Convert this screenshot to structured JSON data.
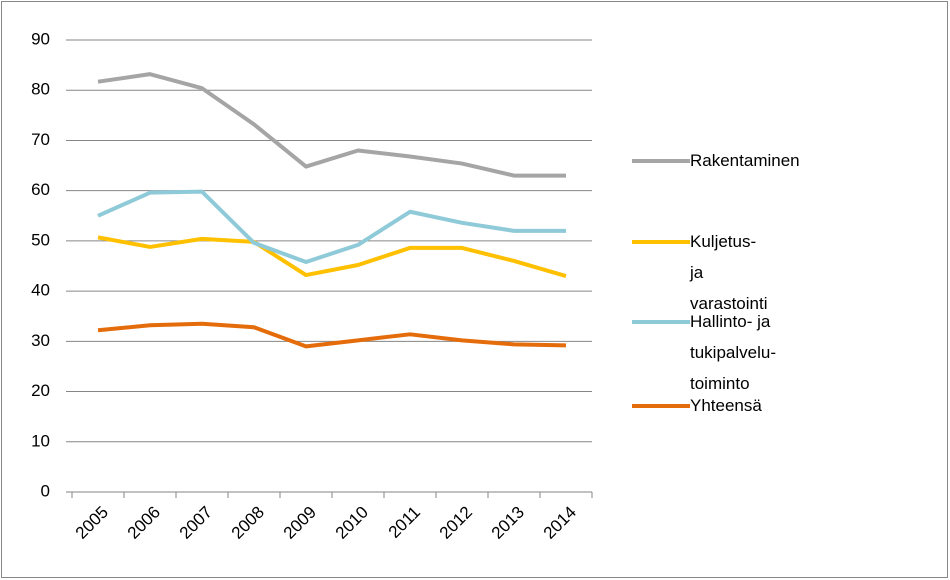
{
  "chart_data": {
    "type": "line",
    "categories": [
      "2005",
      "2006",
      "2007",
      "2008",
      "2009",
      "2010",
      "2011",
      "2012",
      "2013",
      "2014"
    ],
    "series": [
      {
        "name": "Rakentaminen",
        "color": "#a5a5a5",
        "values": [
          81.7,
          83.2,
          80.4,
          73.2,
          64.8,
          68.0,
          66.8,
          65.4,
          63.0,
          63.0
        ]
      },
      {
        "name": "Kuljetus- ja varastointi",
        "color": "#ffc000",
        "values": [
          50.7,
          48.8,
          50.4,
          49.8,
          43.2,
          45.2,
          48.6,
          48.6,
          46.0,
          43.0
        ]
      },
      {
        "name": "Hallinto- ja tukipalvelu-\ntoiminto",
        "color": "#8fcad8",
        "values": [
          55.0,
          59.6,
          59.8,
          49.6,
          45.8,
          49.2,
          55.8,
          53.6,
          52.0,
          52.0
        ]
      },
      {
        "name": "Yhteensä",
        "color": "#e46c0a",
        "values": [
          32.2,
          33.2,
          33.5,
          32.8,
          29.0,
          30.2,
          31.4,
          30.2,
          29.4,
          29.2
        ]
      }
    ],
    "ylim": [
      0,
      90
    ],
    "yticks": [
      0,
      10,
      20,
      30,
      40,
      50,
      60,
      70,
      80,
      90
    ],
    "grid": true,
    "legend": "right"
  }
}
